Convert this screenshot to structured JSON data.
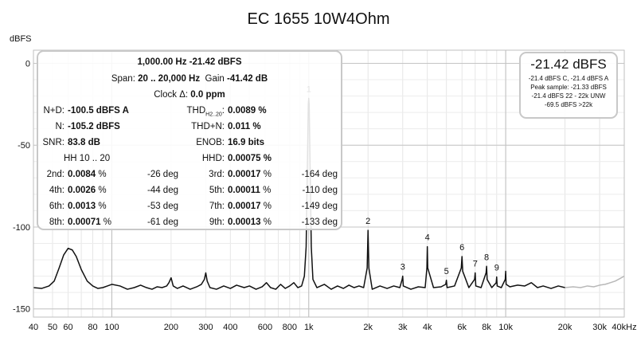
{
  "chart_data": {
    "type": "line",
    "title": "EC 1655 10W4Ohm",
    "ylabel": "dBFS",
    "xlabel": "",
    "xscale": "log",
    "xlim": [
      40,
      40000
    ],
    "ylim": [
      -155,
      8
    ],
    "grid": true,
    "x_ticks": [
      {
        "value": 40,
        "label": "40"
      },
      {
        "value": 50,
        "label": "50"
      },
      {
        "value": 60,
        "label": "60"
      },
      {
        "value": 80,
        "label": "80"
      },
      {
        "value": 100,
        "label": "100"
      },
      {
        "value": 200,
        "label": "200"
      },
      {
        "value": 300,
        "label": "300"
      },
      {
        "value": 400,
        "label": "400"
      },
      {
        "value": 600,
        "label": "600"
      },
      {
        "value": 800,
        "label": "800"
      },
      {
        "value": 1000,
        "label": "1k"
      },
      {
        "value": 2000,
        "label": "2k"
      },
      {
        "value": 3000,
        "label": "3k"
      },
      {
        "value": 4000,
        "label": "4k"
      },
      {
        "value": 6000,
        "label": "6k"
      },
      {
        "value": 8000,
        "label": "8k"
      },
      {
        "value": 10000,
        "label": "10k"
      },
      {
        "value": 20000,
        "label": "20k"
      },
      {
        "value": 30000,
        "label": "30k"
      },
      {
        "value": 40000,
        "label": "40kHz"
      }
    ],
    "y_ticks": [
      {
        "value": 0,
        "label": "0"
      },
      {
        "value": -50,
        "label": "-50"
      },
      {
        "value": -100,
        "label": "-100"
      },
      {
        "value": -150,
        "label": "-150"
      }
    ],
    "series": [
      {
        "color": "#111111",
        "points": [
          [
            40,
            -137
          ],
          [
            44,
            -137.5
          ],
          [
            48,
            -136
          ],
          [
            51,
            -133
          ],
          [
            54,
            -125
          ],
          [
            57,
            -117
          ],
          [
            60,
            -113
          ],
          [
            63,
            -114
          ],
          [
            66,
            -118
          ],
          [
            70,
            -126
          ],
          [
            75,
            -133
          ],
          [
            80,
            -136
          ],
          [
            85,
            -137.5
          ],
          [
            90,
            -137
          ],
          [
            95,
            -136
          ],
          [
            100,
            -135
          ],
          [
            110,
            -136
          ],
          [
            120,
            -138
          ],
          [
            130,
            -137
          ],
          [
            140,
            -135.5
          ],
          [
            150,
            -137
          ],
          [
            160,
            -138
          ],
          [
            170,
            -136.5
          ],
          [
            180,
            -137
          ],
          [
            190,
            -136
          ],
          [
            195,
            -134
          ],
          [
            200,
            -131
          ],
          [
            205,
            -136
          ],
          [
            215,
            -137.5
          ],
          [
            230,
            -136
          ],
          [
            250,
            -138
          ],
          [
            270,
            -136.5
          ],
          [
            285,
            -135
          ],
          [
            295,
            -132
          ],
          [
            300,
            -128
          ],
          [
            305,
            -133
          ],
          [
            315,
            -137
          ],
          [
            340,
            -138
          ],
          [
            370,
            -136
          ],
          [
            400,
            -137.5
          ],
          [
            430,
            -135.5
          ],
          [
            470,
            -137
          ],
          [
            500,
            -136
          ],
          [
            540,
            -138
          ],
          [
            580,
            -136.5
          ],
          [
            610,
            -134
          ],
          [
            640,
            -137
          ],
          [
            680,
            -138
          ],
          [
            720,
            -135
          ],
          [
            760,
            -137.5
          ],
          [
            800,
            -136
          ],
          [
            840,
            -134
          ],
          [
            880,
            -137
          ],
          [
            920,
            -136
          ],
          [
            950,
            -130
          ],
          [
            970,
            -112
          ],
          [
            985,
            -60
          ],
          [
            995,
            -25
          ],
          [
            1000,
            -21.4
          ],
          [
            1005,
            -25
          ],
          [
            1015,
            -60
          ],
          [
            1030,
            -112
          ],
          [
            1050,
            -132
          ],
          [
            1100,
            -137
          ],
          [
            1200,
            -135
          ],
          [
            1300,
            -138
          ],
          [
            1400,
            -136
          ],
          [
            1500,
            -137.5
          ],
          [
            1600,
            -135.5
          ],
          [
            1700,
            -137
          ],
          [
            1800,
            -136
          ],
          [
            1900,
            -137
          ],
          [
            1980,
            -125
          ],
          [
            2000,
            -102
          ],
          [
            2020,
            -125
          ],
          [
            2100,
            -138
          ],
          [
            2300,
            -136
          ],
          [
            2500,
            -137.5
          ],
          [
            2700,
            -136
          ],
          [
            2900,
            -137
          ],
          [
            2980,
            -132
          ],
          [
            3000,
            -130
          ],
          [
            3020,
            -136
          ],
          [
            3300,
            -138
          ],
          [
            3600,
            -136.5
          ],
          [
            3900,
            -137
          ],
          [
            3980,
            -125
          ],
          [
            4000,
            -112
          ],
          [
            4020,
            -125
          ],
          [
            4300,
            -137
          ],
          [
            4700,
            -136.5
          ],
          [
            4960,
            -135
          ],
          [
            5000,
            -132.5
          ],
          [
            5040,
            -137
          ],
          [
            5500,
            -136
          ],
          [
            5950,
            -125
          ],
          [
            6000,
            -118
          ],
          [
            6050,
            -127
          ],
          [
            6500,
            -137
          ],
          [
            6950,
            -132
          ],
          [
            7000,
            -128
          ],
          [
            7050,
            -136
          ],
          [
            7500,
            -137
          ],
          [
            7950,
            -128
          ],
          [
            8000,
            -124
          ],
          [
            8050,
            -132
          ],
          [
            8500,
            -137
          ],
          [
            8950,
            -134
          ],
          [
            9000,
            -130.5
          ],
          [
            9050,
            -136
          ],
          [
            9500,
            -137
          ],
          [
            9950,
            -132
          ],
          [
            10000,
            -127
          ],
          [
            10050,
            -135
          ],
          [
            10500,
            -136.5
          ],
          [
            11500,
            -135.5
          ],
          [
            12500,
            -136
          ],
          [
            13500,
            -134
          ],
          [
            14500,
            -137
          ],
          [
            15500,
            -136
          ],
          [
            17000,
            -137.5
          ],
          [
            18500,
            -136
          ],
          [
            20000,
            -137
          ]
        ]
      },
      {
        "color": "#b8b8b8",
        "points": [
          [
            20000,
            -137
          ],
          [
            22000,
            -136.5
          ],
          [
            24000,
            -137
          ],
          [
            26000,
            -136
          ],
          [
            28000,
            -136.5
          ],
          [
            30000,
            -135.5
          ],
          [
            32000,
            -135
          ],
          [
            34000,
            -134
          ],
          [
            36000,
            -133
          ],
          [
            38000,
            -131.5
          ],
          [
            40000,
            -130
          ]
        ]
      }
    ],
    "harmonic_labels": [
      {
        "label": "1",
        "x": 1000,
        "y": -21.4
      },
      {
        "label": "2",
        "x": 2000,
        "y": -102
      },
      {
        "label": "3",
        "x": 3000,
        "y": -130
      },
      {
        "label": "4",
        "x": 4000,
        "y": -112
      },
      {
        "label": "5",
        "x": 5000,
        "y": -132.5
      },
      {
        "label": "6",
        "x": 6000,
        "y": -118
      },
      {
        "label": "7",
        "x": 7000,
        "y": -128
      },
      {
        "label": "8",
        "x": 8000,
        "y": -124
      },
      {
        "label": "9",
        "x": 9000,
        "y": -130.5
      }
    ]
  },
  "panel": {
    "line1": "1,000.00 Hz  -21.42 dBFS",
    "span_label": "Span:",
    "span_value": "20 .. 20,000 Hz",
    "gain_label": "Gain",
    "gain_value": "-41.42 dB",
    "clock_label": "Clock Δ:",
    "clock_value": "0.0 ppm",
    "nd_label": "N+D:",
    "nd_value": "-100.5 dBFS A",
    "thd_label": "THD",
    "thd_sub": "H2..20",
    "thd_value": "0.0089 %",
    "n_label": "N:",
    "n_value": "-105.2 dBFS",
    "thdn_label": "THD+N:",
    "thdn_value": "0.011 %",
    "snr_label": "SNR:",
    "snr_value": "83.8 dB",
    "enob_label": "ENOB:",
    "enob_value": "16.9 bits",
    "hh_label": "HH 10 .. 20",
    "hhd_label": "HHD:",
    "hhd_value": "0.00075 %",
    "harmonics": [
      {
        "name": "2nd:",
        "value": "0.0084",
        "unit": " %",
        "deg": "-26 deg"
      },
      {
        "name": "3rd:",
        "value": "0.00017",
        "unit": " %",
        "deg": "-164 deg"
      },
      {
        "name": "4th:",
        "value": "0.0026",
        "unit": " %",
        "deg": "-44 deg"
      },
      {
        "name": "5th:",
        "value": "0.00011",
        "unit": " %",
        "deg": "-110 deg"
      },
      {
        "name": "6th:",
        "value": "0.0013",
        "unit": " %",
        "deg": "-53 deg"
      },
      {
        "name": "7th:",
        "value": "0.00017",
        "unit": " %",
        "deg": "-149 deg"
      },
      {
        "name": "8th:",
        "value": "0.00071",
        "unit": " %",
        "deg": "-61 deg"
      },
      {
        "name": "9th:",
        "value": "0.00013",
        "unit": " %",
        "deg": "-133 deg"
      }
    ]
  },
  "readout": {
    "big": "-21.42 dBFS",
    "lines": [
      "-21.4 dBFS C, -21.4 dBFS A",
      "Peak sample: -21.33 dBFS",
      "-21.4 dBFS 22 - 22k UNW",
      "-69.5 dBFS >22k"
    ]
  }
}
